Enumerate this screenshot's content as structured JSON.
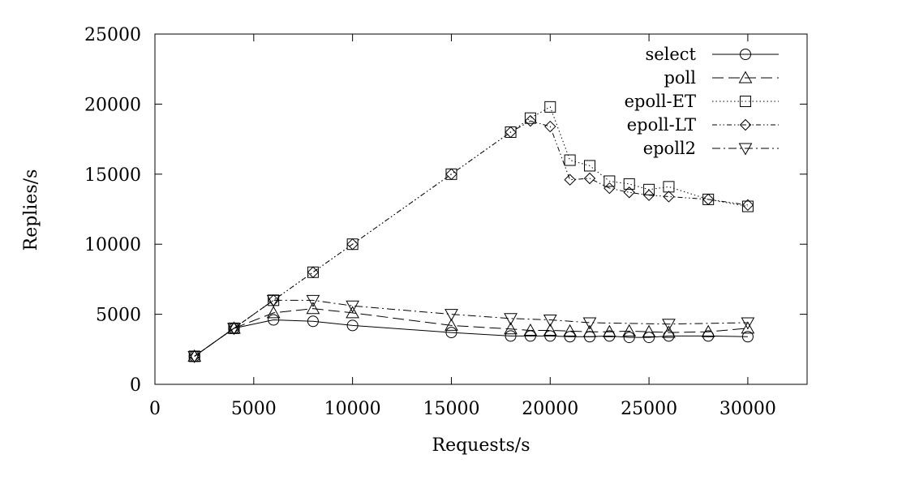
{
  "chart_data": {
    "type": "line",
    "title": "",
    "xlabel": "Requests/s",
    "ylabel": "Replies/s",
    "xlim": [
      0,
      33000
    ],
    "ylim": [
      0,
      25000
    ],
    "x_ticks": [
      0,
      5000,
      10000,
      15000,
      20000,
      25000,
      30000
    ],
    "y_ticks": [
      0,
      5000,
      10000,
      15000,
      20000,
      25000
    ],
    "grid": false,
    "legend_position": "top-right",
    "series": [
      {
        "name": "select",
        "marker": "circle",
        "dash": "solid",
        "points": [
          [
            2000,
            2000
          ],
          [
            4000,
            4000
          ],
          [
            6000,
            4600
          ],
          [
            8000,
            4500
          ],
          [
            10000,
            4200
          ],
          [
            15000,
            3700
          ],
          [
            18000,
            3450
          ],
          [
            19000,
            3450
          ],
          [
            20000,
            3450
          ],
          [
            21000,
            3400
          ],
          [
            22000,
            3400
          ],
          [
            23000,
            3450
          ],
          [
            24000,
            3350
          ],
          [
            25000,
            3350
          ],
          [
            26000,
            3450
          ],
          [
            28000,
            3450
          ],
          [
            30000,
            3400
          ]
        ]
      },
      {
        "name": "poll",
        "marker": "triangle-up",
        "dash": "long-dash",
        "points": [
          [
            2000,
            2000
          ],
          [
            4000,
            4000
          ],
          [
            6000,
            5100
          ],
          [
            8000,
            5400
          ],
          [
            10000,
            5100
          ],
          [
            15000,
            4200
          ],
          [
            18000,
            3950
          ],
          [
            19000,
            3850
          ],
          [
            20000,
            3850
          ],
          [
            21000,
            3800
          ],
          [
            22000,
            3750
          ],
          [
            23000,
            3750
          ],
          [
            24000,
            3800
          ],
          [
            25000,
            3750
          ],
          [
            26000,
            3700
          ],
          [
            28000,
            3750
          ],
          [
            30000,
            4000
          ]
        ]
      },
      {
        "name": "epoll-ET",
        "marker": "square",
        "dash": "dotted",
        "points": [
          [
            2000,
            2000
          ],
          [
            4000,
            4000
          ],
          [
            6000,
            6000
          ],
          [
            8000,
            8000
          ],
          [
            10000,
            10000
          ],
          [
            15000,
            15000
          ],
          [
            18000,
            18000
          ],
          [
            19000,
            19000
          ],
          [
            20000,
            19800
          ],
          [
            21000,
            16000
          ],
          [
            22000,
            15600
          ],
          [
            23000,
            14500
          ],
          [
            24000,
            14300
          ],
          [
            25000,
            13900
          ],
          [
            26000,
            14100
          ],
          [
            28000,
            13200
          ],
          [
            30000,
            12700
          ]
        ]
      },
      {
        "name": "epoll-LT",
        "marker": "diamond",
        "dash": "dash-dot-dot",
        "points": [
          [
            2000,
            2000
          ],
          [
            4000,
            4000
          ],
          [
            6000,
            6000
          ],
          [
            8000,
            8000
          ],
          [
            10000,
            10000
          ],
          [
            15000,
            15000
          ],
          [
            18000,
            18000
          ],
          [
            19000,
            18800
          ],
          [
            20000,
            18400
          ],
          [
            21000,
            14600
          ],
          [
            22000,
            14700
          ],
          [
            23000,
            14000
          ],
          [
            24000,
            13700
          ],
          [
            25000,
            13500
          ],
          [
            26000,
            13400
          ],
          [
            28000,
            13200
          ],
          [
            30000,
            12800
          ]
        ]
      },
      {
        "name": "epoll2",
        "marker": "triangle-down",
        "dash": "dash-dot",
        "points": [
          [
            2000,
            2000
          ],
          [
            4000,
            4000
          ],
          [
            6000,
            6000
          ],
          [
            8000,
            6000
          ],
          [
            10000,
            5600
          ],
          [
            15000,
            5000
          ],
          [
            18000,
            4700
          ],
          [
            20000,
            4600
          ],
          [
            22000,
            4400
          ],
          [
            26000,
            4300
          ],
          [
            30000,
            4400
          ]
        ]
      }
    ]
  }
}
